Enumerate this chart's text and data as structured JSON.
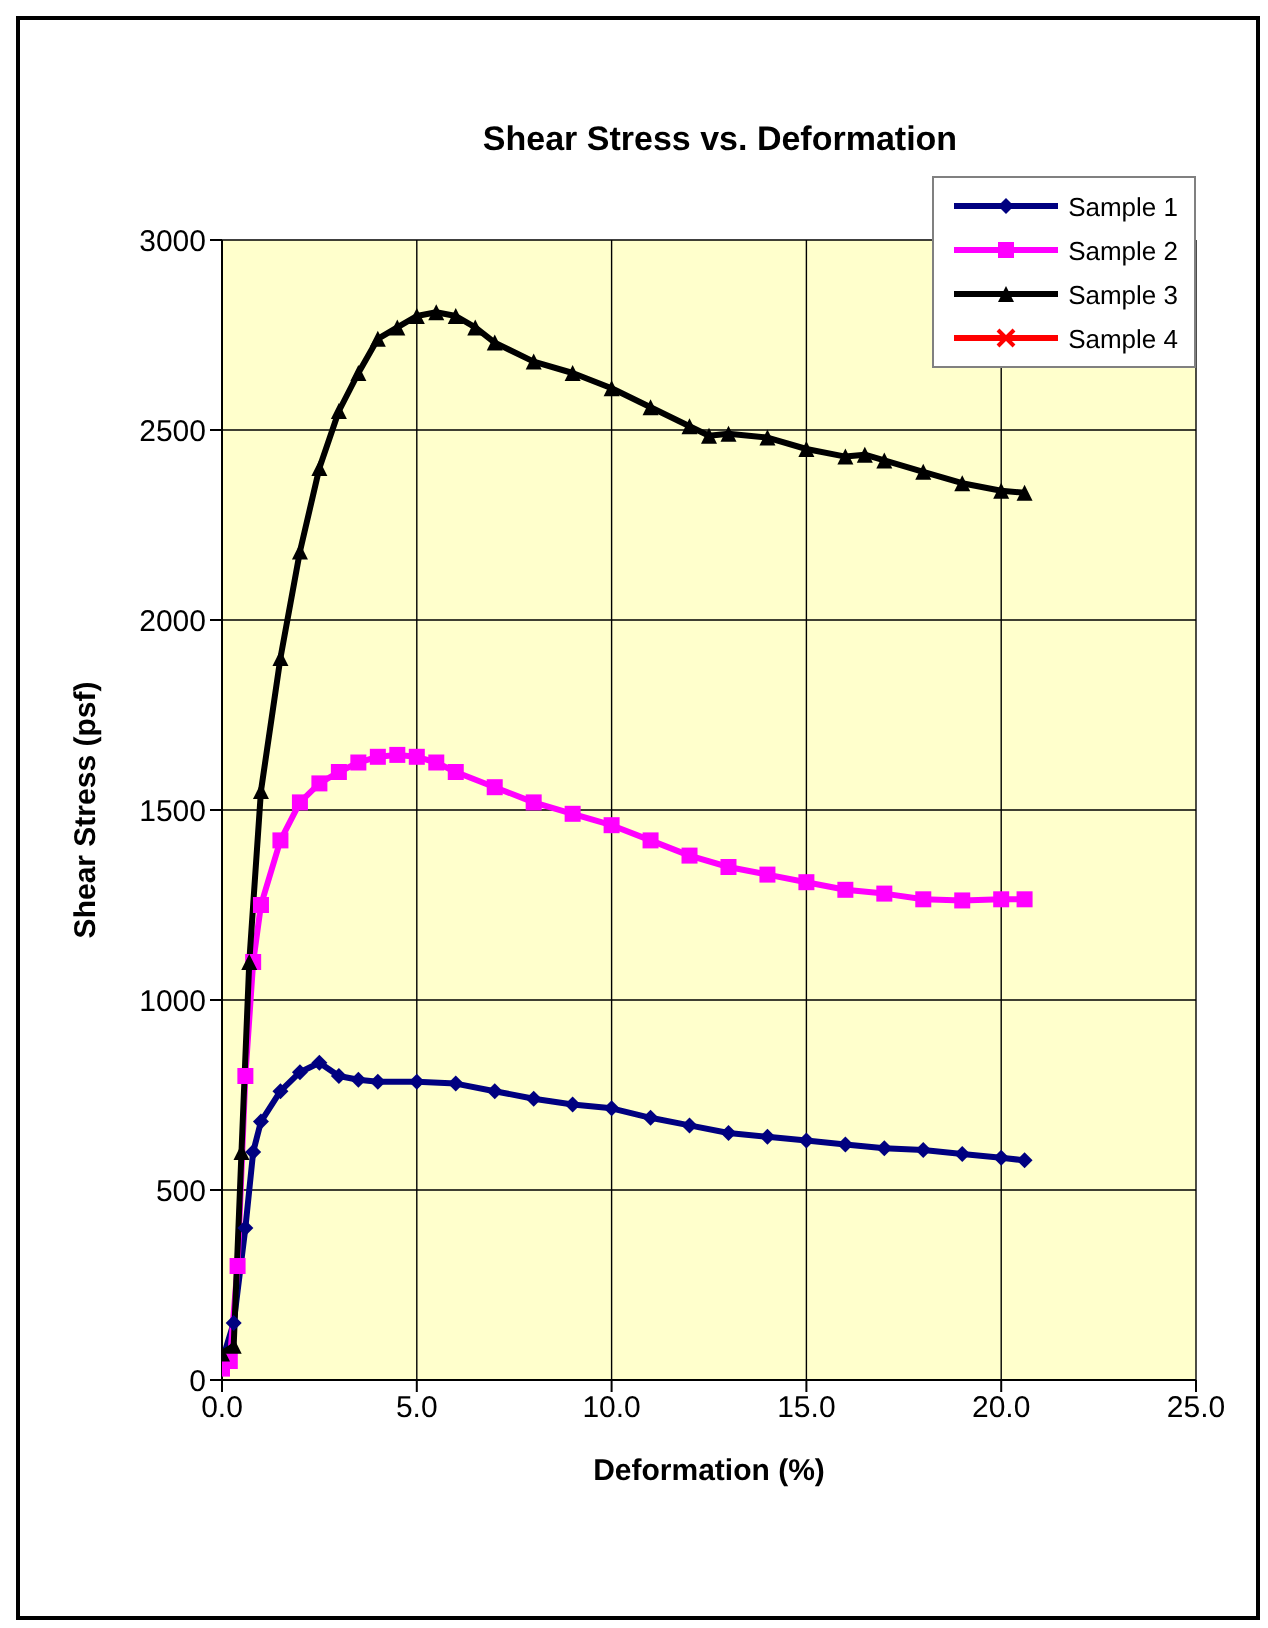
{
  "chart_data": {
    "type": "line",
    "title": "Shear Stress vs. Deformation",
    "xlabel": "Deformation (%)",
    "ylabel": "Shear Stress (psf)",
    "xlim": [
      0,
      25
    ],
    "xticks": [
      {
        "value": 0,
        "label": "0.0"
      },
      {
        "value": 5,
        "label": "5.0"
      },
      {
        "value": 10,
        "label": "10.0"
      },
      {
        "value": 15,
        "label": "15.0"
      },
      {
        "value": 20,
        "label": "20.0"
      },
      {
        "value": 25,
        "label": "25.0"
      }
    ],
    "ylim": [
      0,
      3000
    ],
    "yticks": [
      0,
      500,
      1000,
      1500,
      2000,
      2500,
      3000
    ],
    "grid": true,
    "legend": "top right",
    "series": [
      {
        "name": "Sample 1",
        "color": "#000080",
        "marker": "diamond",
        "x": [
          0,
          0.3,
          0.6,
          0.8,
          1.0,
          1.5,
          2.0,
          2.5,
          3.0,
          3.5,
          4,
          5,
          6,
          7,
          8,
          9,
          10,
          11,
          12,
          13,
          14,
          15,
          16,
          17,
          18,
          19,
          20,
          20.6
        ],
        "values": [
          50,
          150,
          400,
          600,
          680,
          760,
          810,
          835,
          800,
          790,
          785,
          785,
          780,
          760,
          740,
          725,
          715,
          690,
          670,
          650,
          640,
          630,
          620,
          610,
          605,
          595,
          585,
          578
        ]
      },
      {
        "name": "Sample 2",
        "color": "#ff00ff",
        "marker": "square",
        "x": [
          0,
          0.2,
          0.4,
          0.6,
          0.8,
          1.0,
          1.5,
          2,
          2.5,
          3,
          3.5,
          4,
          4.5,
          5,
          5.5,
          6,
          7,
          8,
          9,
          10,
          11,
          12,
          13,
          14,
          15,
          16,
          17,
          18,
          19,
          20,
          20.6
        ],
        "values": [
          30,
          50,
          300,
          800,
          1100,
          1250,
          1420,
          1520,
          1570,
          1600,
          1625,
          1640,
          1645,
          1640,
          1625,
          1600,
          1560,
          1520,
          1490,
          1460,
          1420,
          1380,
          1350,
          1330,
          1310,
          1290,
          1280,
          1265,
          1262,
          1265,
          1265
        ]
      },
      {
        "name": "Sample 3",
        "color": "#000000",
        "marker": "triangle",
        "x": [
          0,
          0.3,
          0.5,
          0.7,
          1.0,
          1.5,
          2,
          2.5,
          3,
          3.5,
          4,
          4.5,
          5,
          5.5,
          6,
          6.5,
          7,
          8,
          9,
          10,
          11,
          12,
          12.5,
          13,
          14,
          15,
          16,
          16.5,
          17,
          18,
          19,
          20,
          20.6
        ],
        "values": [
          70,
          90,
          600,
          1100,
          1550,
          1900,
          2180,
          2400,
          2550,
          2650,
          2740,
          2770,
          2800,
          2810,
          2800,
          2770,
          2730,
          2680,
          2650,
          2610,
          2560,
          2510,
          2485,
          2490,
          2480,
          2450,
          2430,
          2435,
          2420,
          2390,
          2360,
          2340,
          2335
        ]
      },
      {
        "name": "Sample 4",
        "color": "#ff0000",
        "marker": "cross"
      }
    ]
  }
}
